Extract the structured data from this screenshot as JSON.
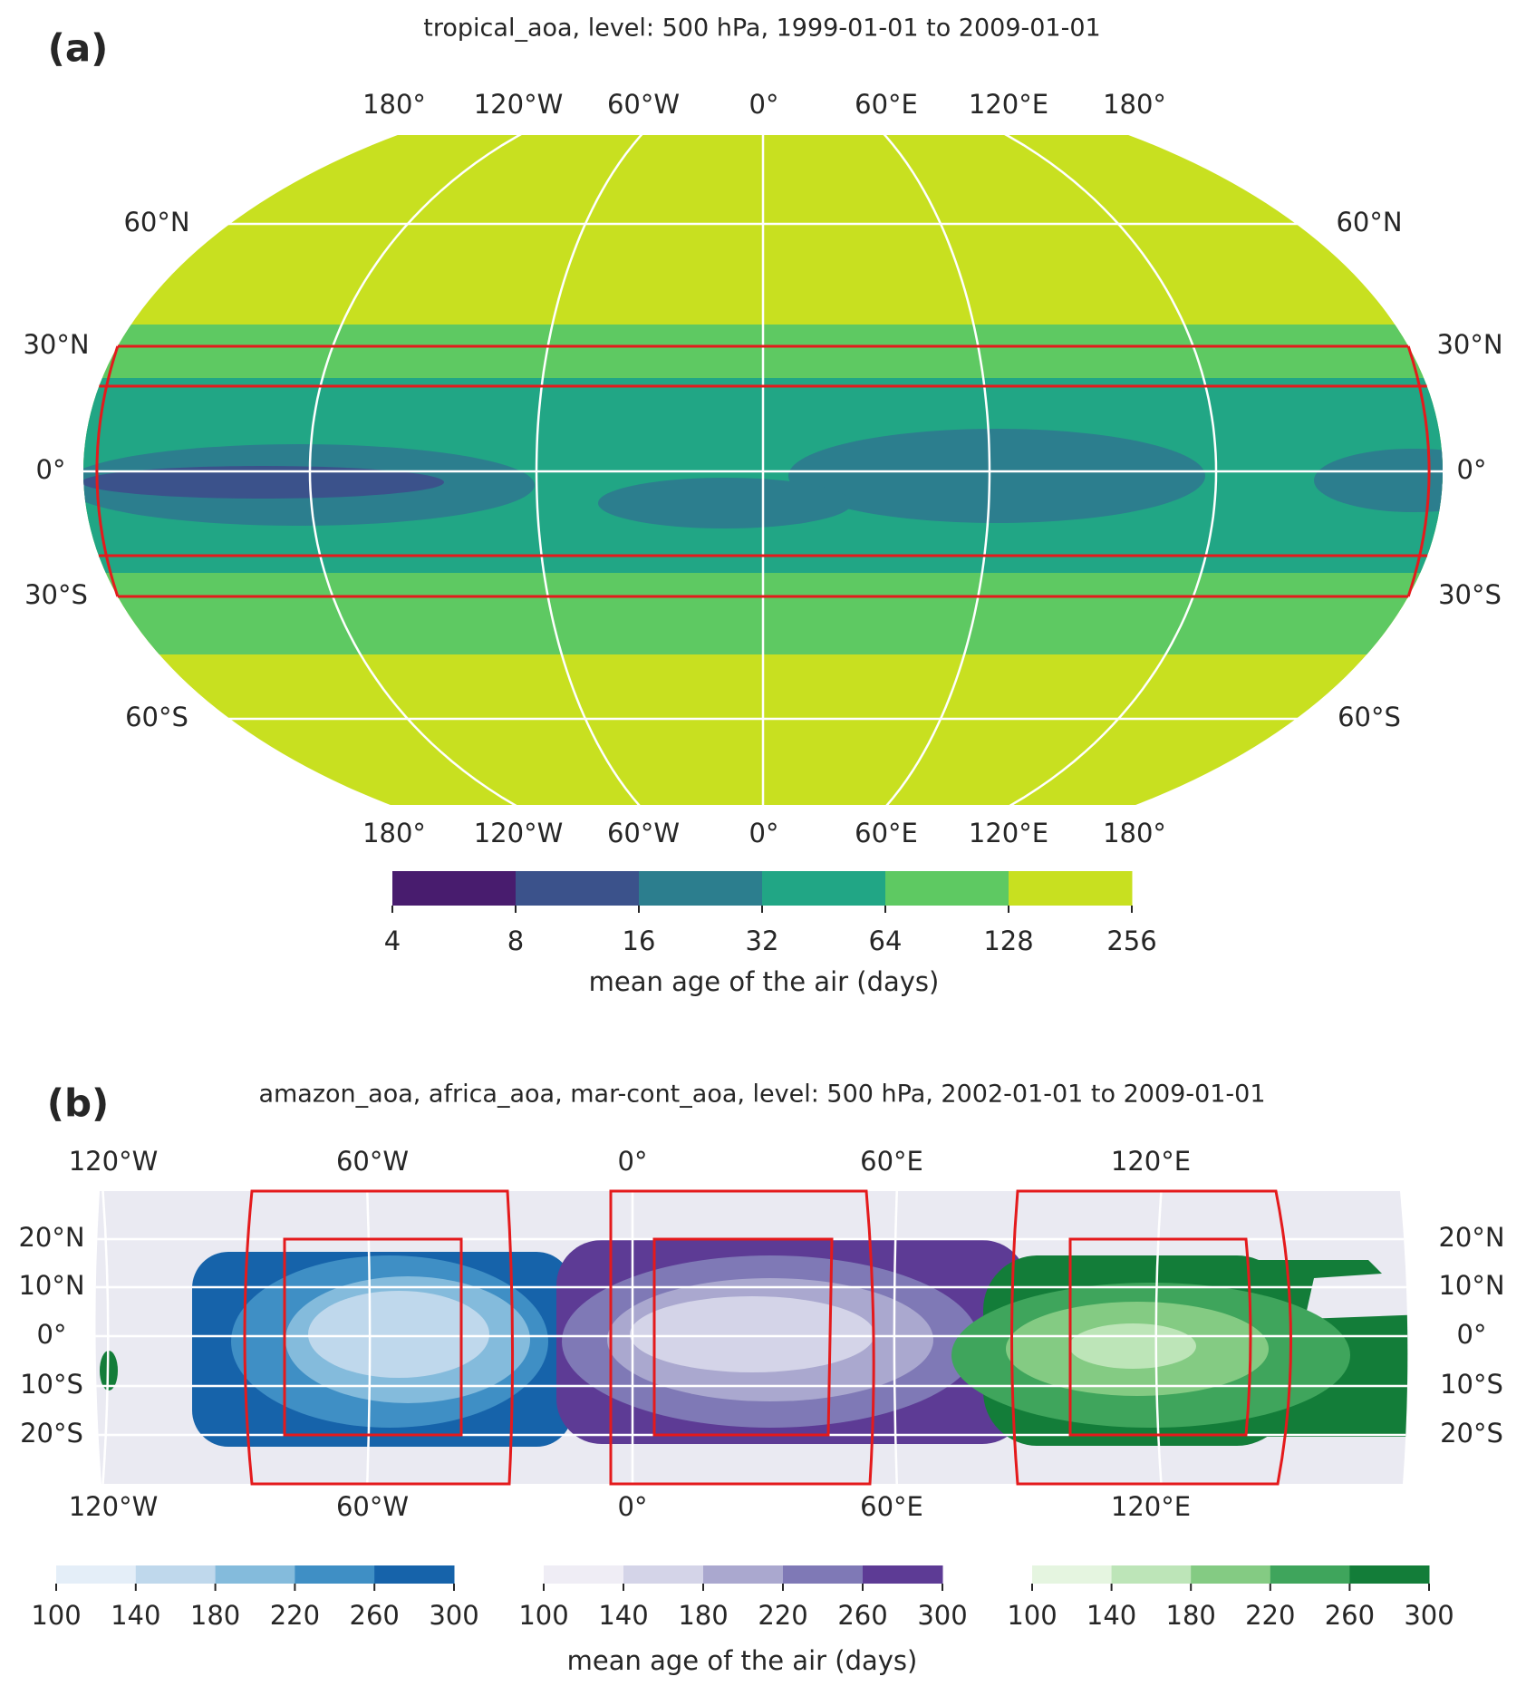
{
  "panels": [
    {
      "label": "(a)",
      "title": "tropical_aoa, level: 500 hPa, 1999-01-01 to 2009-01-01",
      "lon_labels": [
        "180°",
        "120°W",
        "60°W",
        "0°",
        "60°E",
        "120°E",
        "180°"
      ],
      "lat_labels": [
        "60°N",
        "30°N",
        "0°",
        "30°S",
        "60°S"
      ],
      "colorbars": [
        {
          "levels": [
            4,
            8,
            16,
            32,
            64,
            128,
            256
          ],
          "colors": [
            "#481c6e",
            "#3b528b",
            "#2c7e8e",
            "#21a685",
            "#5ec962",
            "#c8e020"
          ]
        }
      ],
      "colorbar_label": "mean age of the air (days)"
    },
    {
      "label": "(b)",
      "title": "amazon_aoa, africa_aoa, mar-cont_aoa, level: 500 hPa, 2002-01-01 to 2009-01-01",
      "lon_labels": [
        "120°W",
        "60°W",
        "0°",
        "60°E",
        "120°E"
      ],
      "lat_labels": [
        "20°N",
        "10°N",
        "0°",
        "10°S",
        "20°S"
      ],
      "colorbars": [
        {
          "levels": [
            100,
            140,
            180,
            220,
            260,
            300
          ],
          "colors": [
            "#e4eef8",
            "#bfd8ec",
            "#84bbdc",
            "#3f8fc5",
            "#1663aa"
          ]
        },
        {
          "levels": [
            100,
            140,
            180,
            220,
            260,
            300
          ],
          "colors": [
            "#efedf5",
            "#d4d4e8",
            "#aaa8cf",
            "#7f79b6",
            "#5d3b95"
          ]
        },
        {
          "levels": [
            100,
            140,
            180,
            220,
            260,
            300
          ],
          "colors": [
            "#e5f5e0",
            "#bde5b8",
            "#84cb83",
            "#3fa55c",
            "#137d39"
          ]
        }
      ],
      "colorbar_label": "mean age of the air (days)"
    }
  ]
}
